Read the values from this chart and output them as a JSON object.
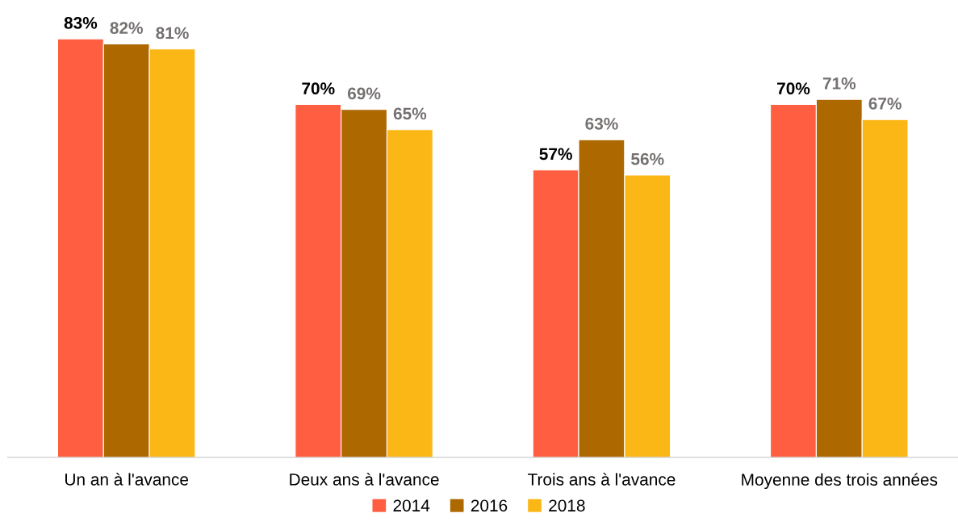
{
  "chart_data": {
    "type": "bar",
    "categories": [
      "Un an à l'avance",
      "Deux ans à l'avance",
      "Trois ans à l'avance",
      "Moyenne des trois années"
    ],
    "series": [
      {
        "name": "2014",
        "color": "#ff5f40",
        "values": [
          83,
          70,
          57,
          70
        ],
        "value_labels": [
          "83%",
          "70%",
          "57%",
          "70%"
        ]
      },
      {
        "name": "2016",
        "color": "#ad6800",
        "values": [
          82,
          69,
          63,
          71
        ],
        "value_labels": [
          "82%",
          "69%",
          "63%",
          "71%"
        ]
      },
      {
        "name": "2018",
        "color": "#fbb716",
        "values": [
          81,
          65,
          56,
          67
        ],
        "value_labels": [
          "81%",
          "65%",
          "56%",
          "67%"
        ]
      }
    ],
    "legend": "bottom"
  }
}
